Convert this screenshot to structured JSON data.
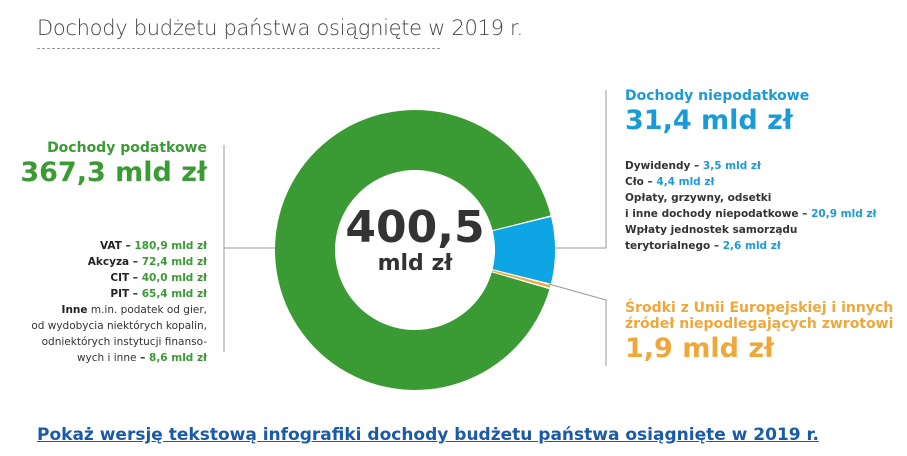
{
  "title": "Dochody budżetu państwa osiągnięte w 2019 r.",
  "chart_data": {
    "type": "pie",
    "title": "Dochody budżetu państwa osiągnięte w 2019 r.",
    "total": {
      "value": "400,5",
      "unit": "mld zł"
    },
    "slices": [
      {
        "name": "Dochody podatkowe",
        "value": 367.3,
        "color": "#3a9a33"
      },
      {
        "name": "Dochody niepodatkowe",
        "value": 31.4,
        "color": "#0ea5e4"
      },
      {
        "name": "Środki z Unii Europejskiej i innych źródeł niepodlegających zwrotowi",
        "value": 1.9,
        "color": "#f0a73a"
      }
    ]
  },
  "tax": {
    "label": "Dochody podatkowe",
    "value": "367,3 mld zł",
    "items": [
      {
        "name": "VAT",
        "value": "180,9 mld zł"
      },
      {
        "name": "Akcyza",
        "value": "72,4 mld zł"
      },
      {
        "name": "CIT",
        "value": "40,0 mld zł"
      },
      {
        "name": "PIT",
        "value": "65,4 mld zł"
      }
    ],
    "other": {
      "name": "Inne",
      "desc1": " m.in. podatek od gier,",
      "desc2": "od wydobycia niektórych kopalin,",
      "desc3": "odniektórych instytucji finanso-",
      "desc4": "wych i inne",
      "value": "8,6 mld zł"
    }
  },
  "nontax": {
    "label": "Dochody niepodatkowe",
    "value": "31,4 mld zł",
    "items": [
      {
        "name": "Dywidendy",
        "value": "3,5 mld zł"
      },
      {
        "name": "Cło",
        "value": "4,4 mld zł"
      },
      {
        "name": "Opłaty, grzywny, odsetki",
        "name2": "i inne dochody niepodatkowe",
        "value": "20,9 mld zł"
      },
      {
        "name": "Wpłaty jednostek samorządu",
        "name2": "terytorialnego",
        "value": "2,6 mld zł"
      }
    ]
  },
  "eu": {
    "label1": "Środki z Unii Europejskiej i innych",
    "label2": "źródeł niepodlegających zwrotowi",
    "value": "1,9 mld zł"
  },
  "dash": " – ",
  "link": "Pokaż wersję tekstową infografiki dochody budżetu państwa osiągnięte w 2019 r."
}
